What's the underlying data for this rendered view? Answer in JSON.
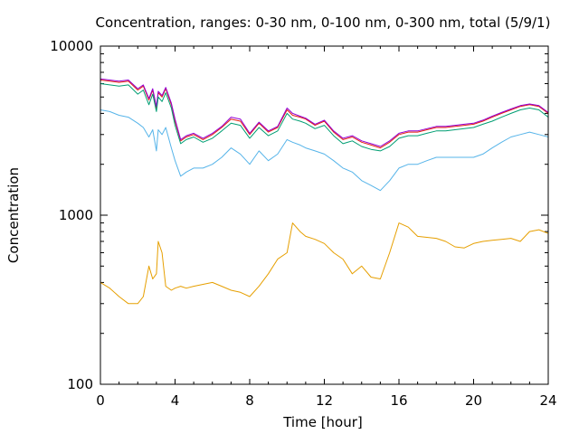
{
  "chart_data": {
    "type": "line",
    "title": "Concentration, ranges: 0-30 nm, 0-100 nm, 0-300 nm, total (5/9/1)",
    "xlabel": "Time [hour]",
    "ylabel": "Concentration",
    "xlim": [
      0,
      24
    ],
    "ylim": [
      100,
      10000
    ],
    "y_scale": "log",
    "x_ticks": [
      0,
      4,
      8,
      12,
      16,
      20,
      24
    ],
    "x_tick_labels": [
      "0",
      "4",
      "8",
      "12",
      "16",
      "20",
      "24"
    ],
    "y_major_ticks": [
      100,
      1000,
      10000
    ],
    "y_tick_labels": [
      "100",
      "1000",
      "10000"
    ],
    "grid": false,
    "legend": "none",
    "x": [
      0,
      0.5,
      1,
      1.5,
      2,
      2.3,
      2.6,
      2.8,
      3,
      3.1,
      3.3,
      3.5,
      3.8,
      4,
      4.3,
      4.6,
      5,
      5.5,
      6,
      6.5,
      7,
      7.5,
      8,
      8.5,
      9,
      9.5,
      10,
      10.3,
      10.7,
      11,
      11.5,
      12,
      12.5,
      13,
      13.5,
      14,
      14.5,
      15,
      15.5,
      16,
      16.5,
      17,
      17.5,
      18,
      18.5,
      19,
      19.5,
      20,
      20.5,
      21,
      21.5,
      22,
      22.5,
      23,
      23.5,
      24
    ],
    "series": [
      {
        "color": "#e51e10",
        "values": [
          6300,
          6200,
          6100,
          6200,
          5500,
          5800,
          4800,
          5500,
          4300,
          5300,
          5000,
          5600,
          4500,
          3600,
          2750,
          2900,
          3000,
          2800,
          3000,
          3300,
          3700,
          3600,
          3000,
          3500,
          3100,
          3300,
          4200,
          3900,
          3800,
          3700,
          3400,
          3600,
          3100,
          2800,
          2900,
          2700,
          2600,
          2500,
          2700,
          3000,
          3100,
          3100,
          3200,
          3300,
          3300,
          3350,
          3400,
          3450,
          3600,
          3800,
          4000,
          4200,
          4400,
          4500,
          4400,
          4000
        ]
      },
      {
        "color": "#9400d3",
        "values": [
          6400,
          6300,
          6200,
          6300,
          5600,
          5900,
          4900,
          5600,
          4400,
          5400,
          5100,
          5700,
          4600,
          3700,
          2800,
          2950,
          3050,
          2850,
          3050,
          3350,
          3800,
          3700,
          3050,
          3550,
          3150,
          3350,
          4300,
          4000,
          3850,
          3750,
          3450,
          3650,
          3150,
          2850,
          2950,
          2750,
          2650,
          2550,
          2750,
          3050,
          3150,
          3150,
          3250,
          3350,
          3350,
          3400,
          3450,
          3500,
          3650,
          3850,
          4050,
          4250,
          4450,
          4550,
          4450,
          4050
        ]
      },
      {
        "color": "#009e73",
        "values": [
          6000,
          5900,
          5800,
          5900,
          5200,
          5500,
          4500,
          5200,
          4100,
          5000,
          4700,
          5300,
          4300,
          3400,
          2650,
          2800,
          2900,
          2700,
          2850,
          3150,
          3500,
          3400,
          2850,
          3300,
          2950,
          3150,
          4000,
          3700,
          3600,
          3500,
          3250,
          3400,
          2950,
          2650,
          2750,
          2550,
          2450,
          2400,
          2550,
          2850,
          2950,
          2950,
          3050,
          3150,
          3150,
          3200,
          3250,
          3300,
          3450,
          3600,
          3800,
          4000,
          4200,
          4300,
          4200,
          3800
        ]
      },
      {
        "color": "#56b4e9",
        "values": [
          4200,
          4100,
          3900,
          3800,
          3500,
          3300,
          2900,
          3200,
          2400,
          3200,
          3000,
          3300,
          2500,
          2100,
          1700,
          1800,
          1900,
          1900,
          2000,
          2200,
          2500,
          2300,
          2000,
          2400,
          2100,
          2300,
          2800,
          2700,
          2600,
          2500,
          2400,
          2300,
          2100,
          1900,
          1800,
          1600,
          1500,
          1400,
          1600,
          1900,
          2000,
          2000,
          2100,
          2200,
          2200,
          2200,
          2200,
          2200,
          2300,
          2500,
          2700,
          2900,
          3000,
          3100,
          3000,
          2900
        ]
      },
      {
        "color": "#e69f00",
        "values": [
          400,
          370,
          330,
          300,
          300,
          330,
          500,
          420,
          450,
          700,
          600,
          380,
          360,
          370,
          380,
          370,
          380,
          390,
          400,
          380,
          360,
          350,
          330,
          380,
          450,
          550,
          600,
          900,
          800,
          750,
          720,
          680,
          600,
          550,
          450,
          500,
          430,
          420,
          600,
          900,
          850,
          750,
          740,
          730,
          700,
          650,
          640,
          680,
          700,
          710,
          720,
          730,
          700,
          800,
          820,
          780
        ]
      }
    ]
  }
}
